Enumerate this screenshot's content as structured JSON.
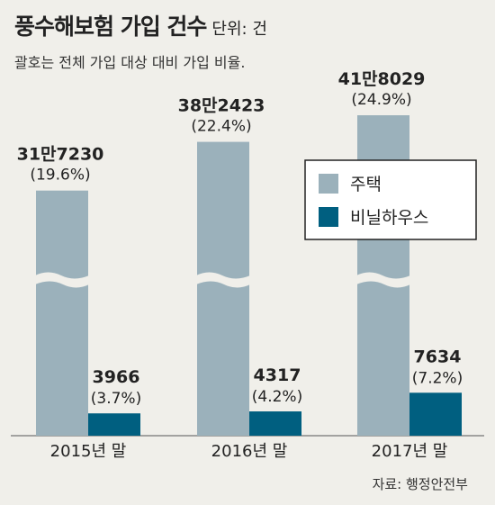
{
  "header": {
    "title": "풍수해보험 가입 건수",
    "unit": "단위: 건",
    "subtitle": "괄호는 전체 가입 대상 대비 가입 비율."
  },
  "source": "자료: 행정안전부",
  "colors": {
    "background": "#f0efea",
    "house": "#9bb1bb",
    "greenhouse": "#005f80"
  },
  "chart_data": {
    "type": "bar",
    "title": "풍수해보험 가입 건수",
    "unit": "단위: 건",
    "note": "괄호는 전체 가입 대상 대비 가입 비율.",
    "categories": [
      "2015년 말",
      "2016년 말",
      "2017년 말"
    ],
    "broken_axis": true,
    "series": [
      {
        "name": "주택",
        "values": [
          317230,
          382423,
          418029
        ],
        "value_labels": [
          "31만7230",
          "38만2423",
          "41만8029"
        ],
        "pct_labels": [
          "(19.6%)",
          "(22.4%)",
          "(24.9%)"
        ]
      },
      {
        "name": "비닐하우스",
        "values": [
          3966,
          4317,
          7634
        ],
        "value_labels": [
          "3966",
          "4317",
          "7634"
        ],
        "pct_labels": [
          "(3.7%)",
          "(4.2%)",
          "(7.2%)"
        ]
      }
    ],
    "legend": [
      "주택",
      "비닐하우스"
    ],
    "legend_position": "right"
  }
}
